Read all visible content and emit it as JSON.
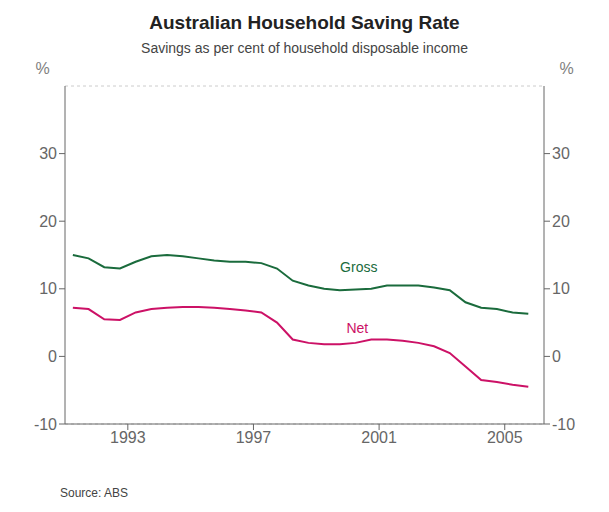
{
  "chart_data": {
    "type": "line",
    "title": "Australian Household Saving Rate",
    "subtitle": "Savings as per cent of household disposable income",
    "source": "Source: ABS",
    "ylabel": "%",
    "y2label": "%",
    "x": [
      1991.25,
      1991.75,
      1992.25,
      1992.75,
      1993.25,
      1993.75,
      1994.25,
      1994.75,
      1995.25,
      1995.75,
      1996.25,
      1996.75,
      1997.25,
      1997.75,
      1998.25,
      1998.75,
      1999.25,
      1999.75,
      2000.25,
      2000.75,
      2001.25,
      2001.75,
      2002.25,
      2002.75,
      2003.25,
      2003.75,
      2004.25,
      2004.75,
      2005.25,
      2005.75
    ],
    "series": [
      {
        "name": "Gross",
        "color": "#1a6b3c",
        "values": [
          15.0,
          14.5,
          13.2,
          13.0,
          14.0,
          14.8,
          15.0,
          14.8,
          14.5,
          14.2,
          14.0,
          14.0,
          13.8,
          13.0,
          11.2,
          10.5,
          10.0,
          9.8,
          9.9,
          10.0,
          10.5,
          10.5,
          10.5,
          10.2,
          9.8,
          8.0,
          7.2,
          7.0,
          6.5,
          6.3
        ]
      },
      {
        "name": "Net",
        "color": "#cc1166",
        "values": [
          7.2,
          7.0,
          5.5,
          5.4,
          6.5,
          7.0,
          7.2,
          7.3,
          7.3,
          7.2,
          7.0,
          6.8,
          6.5,
          5.0,
          2.5,
          2.0,
          1.8,
          1.8,
          2.0,
          2.5,
          2.5,
          2.3,
          2.0,
          1.5,
          0.5,
          -1.5,
          -3.5,
          -3.8,
          -4.2,
          -4.5
        ]
      }
    ],
    "annotations": [
      {
        "text": "Gross",
        "x": 1999.6,
        "y": 13.2,
        "color": "#1a6b3c"
      },
      {
        "text": "Net",
        "x": 1999.8,
        "y": 4.2,
        "color": "#cc1166"
      }
    ],
    "xlim": [
      1991.0,
      2006.25
    ],
    "xticks": [
      1993,
      1997,
      2001,
      2005
    ],
    "ylim": [
      -10,
      40
    ],
    "yticks": [
      -10,
      0,
      10,
      20,
      30
    ],
    "y2lim": [
      -10,
      40
    ],
    "y2ticks": [
      -10,
      0,
      10,
      20,
      30
    ],
    "grid": true
  }
}
